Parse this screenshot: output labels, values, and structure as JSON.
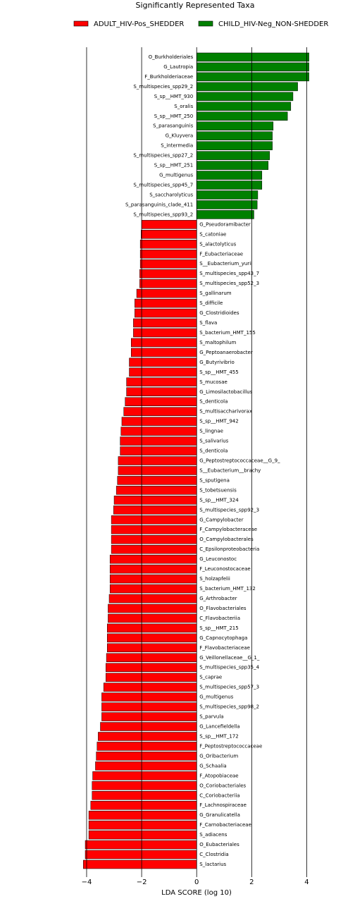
{
  "chart_data": {
    "type": "diverging-bar",
    "title": "Significantly Represented Taxa",
    "x_label": "LDA SCORE (log 10)",
    "xlim": [
      -4.46,
      4.5
    ],
    "xticks": [
      {
        "value": -4,
        "label": "−4"
      },
      {
        "value": -2,
        "label": "−2"
      },
      0,
      2,
      4
    ],
    "grid": true,
    "legend": "top",
    "series": [
      {
        "name": "ADULT_HIV-Pos_SHEDDER",
        "color": "#ff0000",
        "categories": [
          "G_Pseudoramibacter",
          "S_catoniae",
          "S_alactolyticus",
          "F_Eubacteriaceae",
          "S__Eubacterium_yurii",
          "S_multispecies_spp43_7",
          "S_multispecies_spp52_3",
          "S_gallinarum",
          "S_difficile",
          "G_Clostridioides",
          "S_flava",
          "S_bacterium_HMT_155",
          "S_maltophilum",
          "G_Peptoanaerobacter",
          "G_Butyrivibrio",
          "S_sp__HMT_455",
          "S_mucosae",
          "G_Limosilactobacillus",
          "S_denticola",
          "S_multisaccharivorax",
          "S_sp__HMT_942",
          "S_lingnae",
          "S_salivarius",
          "S_denticola",
          "G_Peptostreptococcaceae__G_9_",
          "S__Eubacterium__brachy",
          "S_sputigena",
          "S_tobetsuensis",
          "S_sp__HMT_324",
          "S_multispecies_spp92_3",
          "G_Campylobacter",
          "F_Campylobacteraceae",
          "O_Campylobacterales",
          "C_Epsilonproteobacteria",
          "G_Leuconostoc",
          "F_Leuconostocaceae",
          "S_holzapfelii",
          "S_bacterium_HMT_132",
          "G_Arthrobacter",
          "O_Flavobacteriales",
          "C_Flavobacteriia",
          "S_sp__HMT_215",
          "G_Capnocytophaga",
          "F_Flavobacteriaceae",
          "G_Veillonellaceae__G_1_",
          "S_multispecies_spp35_4",
          "S_caprae",
          "S_multispecies_spp57_3",
          "G_multigenus",
          "S_multispecies_spp98_2",
          "S_parvula",
          "G_Lancefieldella",
          "S_sp__HMT_172",
          "F_Peptostreptococcaceae",
          "G_Oribacterium",
          "G_Schaalia",
          "F_Atopobiaceae",
          "O_Coriobacteriales",
          "C_Coriobacteriia",
          "F_Lachnospiraceae",
          "G_Granulicatella",
          "F_Carnobacteriaceae",
          "S_adiacens",
          "O_Eubacteriales",
          "C_Clostridia",
          "S_lactarius"
        ],
        "values": [
          -2.0,
          -2.02,
          -2.05,
          -2.05,
          -2.05,
          -2.07,
          -2.07,
          -2.18,
          -2.25,
          -2.25,
          -2.3,
          -2.3,
          -2.38,
          -2.38,
          -2.45,
          -2.45,
          -2.55,
          -2.55,
          -2.6,
          -2.65,
          -2.72,
          -2.75,
          -2.78,
          -2.78,
          -2.85,
          -2.85,
          -2.88,
          -2.92,
          -3.0,
          -3.02,
          -3.1,
          -3.1,
          -3.1,
          -3.1,
          -3.15,
          -3.15,
          -3.15,
          -3.15,
          -3.18,
          -3.22,
          -3.22,
          -3.25,
          -3.25,
          -3.25,
          -3.28,
          -3.3,
          -3.3,
          -3.38,
          -3.45,
          -3.45,
          -3.45,
          -3.5,
          -3.58,
          -3.62,
          -3.65,
          -3.68,
          -3.78,
          -3.8,
          -3.8,
          -3.85,
          -3.92,
          -3.92,
          -3.92,
          -4.05,
          -4.05,
          -4.12
        ]
      },
      {
        "name": "CHILD_HIV-Neg_NON-SHEDDER",
        "color": "#008000",
        "categories": [
          "O_Burkholderiales",
          "G_Lautropia",
          "F_Burkholderiaceae",
          "S_multispecies_spp29_2",
          "S_sp__HMT_930",
          "S_oralis",
          "S_sp__HMT_250",
          "S_parasanguinis",
          "G_Kluyvera",
          "S_intermedia",
          "S_multispecies_spp27_2",
          "S_sp__HMT_251",
          "G_multigenus",
          "S_multispecies_spp45_7",
          "S_saccharolyticus",
          "S_parasanguinis_clade_411",
          "S_multispecies_spp93_2"
        ],
        "values": [
          4.08,
          4.08,
          4.08,
          3.67,
          3.5,
          3.42,
          3.3,
          2.78,
          2.75,
          2.75,
          2.65,
          2.6,
          2.37,
          2.37,
          2.22,
          2.2,
          2.08
        ]
      }
    ]
  }
}
